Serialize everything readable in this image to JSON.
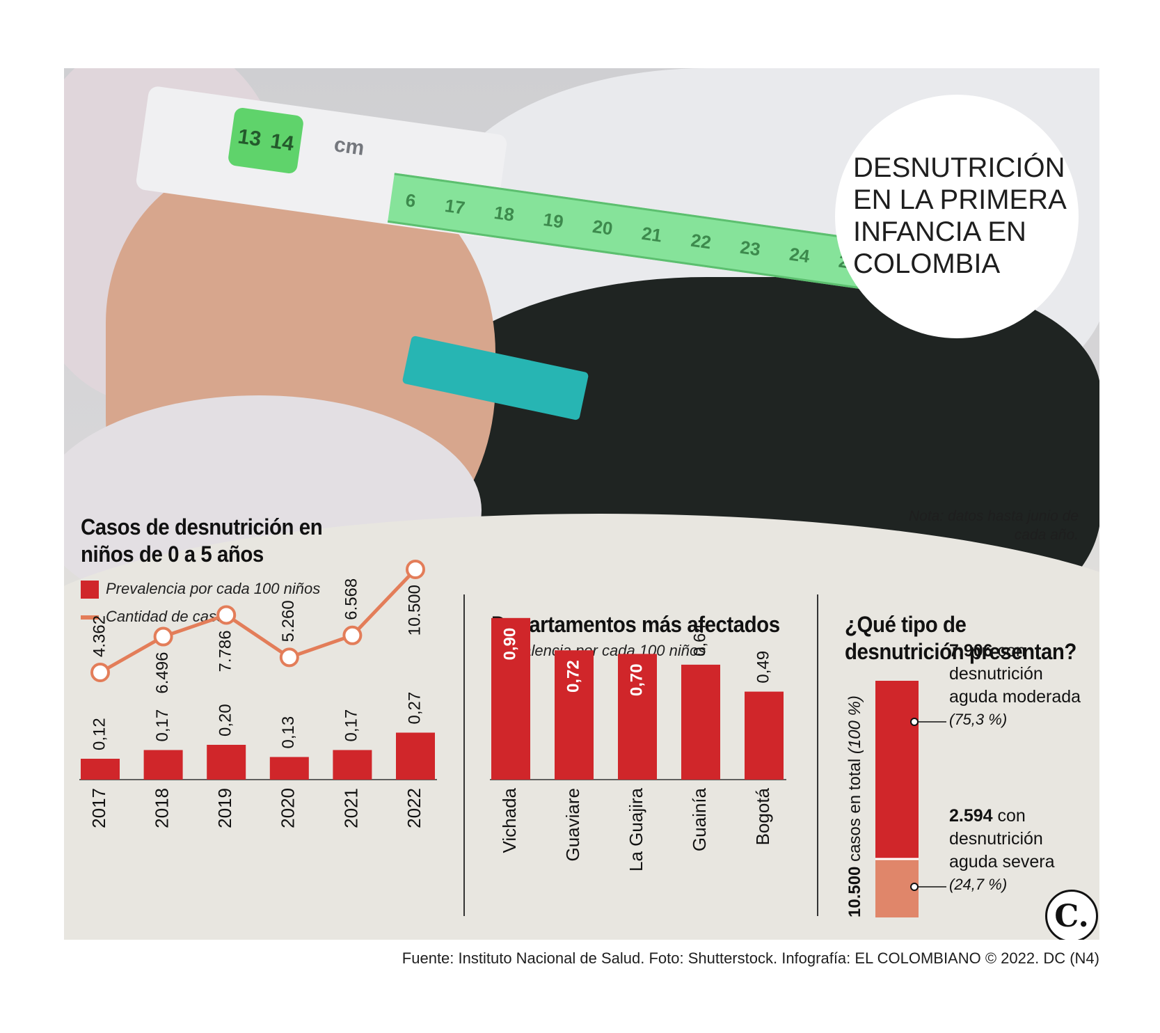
{
  "title": "DESNUTRICIÓN EN LA PRIMERA INFANCIA EN COLOMBIA",
  "note": "Nota: datos hasta junio de cada año.",
  "photo_labels": {
    "band_numbers": [
      "13",
      "14"
    ],
    "band_unit": "cm",
    "tape_numbers": [
      "6",
      "17",
      "18",
      "19",
      "20",
      "21",
      "22",
      "23",
      "24",
      "25"
    ]
  },
  "source": "Fuente: Instituto Nacional de Salud. Foto: Shutterstock. Infografía: EL COLOMBIANO © 2022. DC (N4)",
  "logo_text": "C.",
  "colors": {
    "bar": "#d0262a",
    "line": "#e37d59",
    "severe": "#e0866a",
    "background": "#e8e6e0"
  },
  "chart_data": [
    {
      "type": "bar",
      "title": "Casos de desnutrición en niños de 0 a 5 años",
      "categories": [
        "2017",
        "2018",
        "2019",
        "2020",
        "2021",
        "2022"
      ],
      "series": [
        {
          "name": "Prevalencia por cada 100 niños",
          "type": "bar",
          "values": [
            0.12,
            0.17,
            0.2,
            0.13,
            0.17,
            0.27
          ],
          "labels": [
            "0,12",
            "0,17",
            "0,20",
            "0,13",
            "0,17",
            "0,27"
          ]
        },
        {
          "name": "Cantidad de casos",
          "type": "line",
          "values": [
            4362,
            6496,
            7786,
            5260,
            6568,
            10500
          ],
          "labels": [
            "4.362",
            "6.496",
            "7.786",
            "5.260",
            "6.568",
            "10.500"
          ]
        }
      ],
      "legend": "top-left"
    },
    {
      "type": "bar",
      "title": "Departamentos más afectados",
      "subtitle": "Prevalencia por cada 100 niños",
      "categories": [
        "Vichada",
        "Guaviare",
        "La Guajira",
        "Guainía",
        "Bogotá"
      ],
      "values": [
        0.9,
        0.72,
        0.7,
        0.64,
        0.49
      ],
      "labels": [
        "0,90",
        "0,72",
        "0,70",
        "0,64",
        "0,49"
      ]
    },
    {
      "type": "bar",
      "title": "¿Qué tipo de desnutrición presentan?",
      "axis_label_bold": "10.500",
      "axis_label_rest": " casos en total",
      "axis_label_pct": " (100 %)",
      "stacked": [
        {
          "value_label": "7.906",
          "value": 7906,
          "text_lines": [
            "con",
            "desnutrición",
            "aguda moderada"
          ],
          "pct": "(75,3 %)",
          "share": 0.753
        },
        {
          "value_label": "2.594",
          "value": 2594,
          "text_lines": [
            "con",
            "desnutrición",
            "aguda severa"
          ],
          "pct": "(24,7 %)",
          "share": 0.247
        }
      ]
    }
  ]
}
